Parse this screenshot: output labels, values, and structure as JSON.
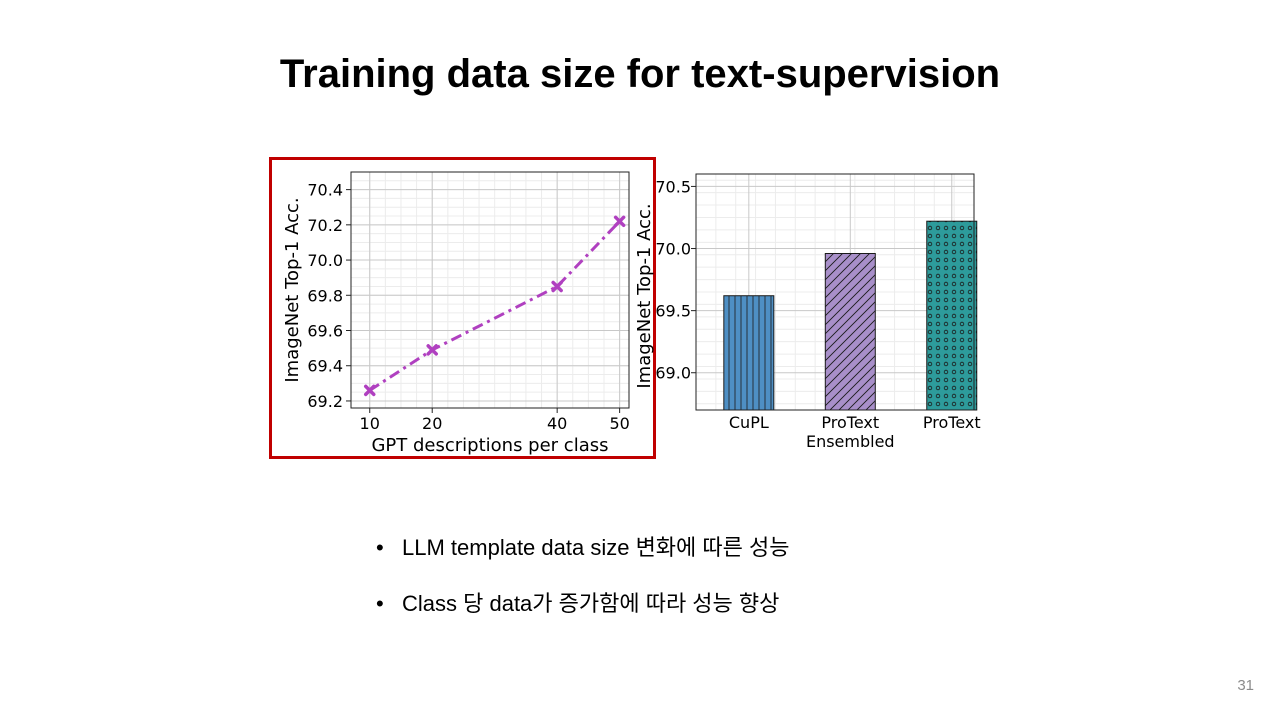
{
  "slide": {
    "title": "Training data size for text-supervision",
    "bullets": [
      "LLM template data size 변화에 따른 성능",
      "Class 당 data가 증가함에 따라 성능 향상"
    ],
    "bullet_symbol": "•",
    "page_number": "31",
    "highlight_color": "#c00000"
  },
  "chart_data": [
    {
      "type": "line",
      "xlabel": "GPT descriptions per class",
      "ylabel": "ImageNet Top-1 Acc.",
      "x": [
        10,
        20,
        40,
        50
      ],
      "series": [
        {
          "values": [
            69.26,
            69.49,
            69.85,
            70.22
          ],
          "color": "#b040c0",
          "marker": "x",
          "linestyle": "dash-dot"
        }
      ],
      "xticks": [
        "10",
        "20",
        "40",
        "50"
      ],
      "yticks": [
        "69.2",
        "69.4",
        "69.6",
        "69.8",
        "70.0",
        "70.2",
        "70.4"
      ],
      "xlim": [
        7,
        51.5
      ],
      "ylim": [
        69.16,
        70.5
      ],
      "grid": true,
      "highlighted": true
    },
    {
      "type": "bar",
      "ylabel": "ImageNet Top-1 Acc.",
      "categories": [
        "CuPL",
        "ProText\nEnsembled",
        "ProText"
      ],
      "values": [
        69.62,
        69.96,
        70.22
      ],
      "colors": [
        "#4e8fc4",
        "#a88fc9",
        "#2d9b9b"
      ],
      "hatches": [
        "vertical-lines",
        "diagonal-lines",
        "circles"
      ],
      "yticks": [
        "69.0",
        "69.5",
        "70.0",
        "70.5"
      ],
      "ylim": [
        68.7,
        70.6
      ],
      "grid": true
    }
  ]
}
